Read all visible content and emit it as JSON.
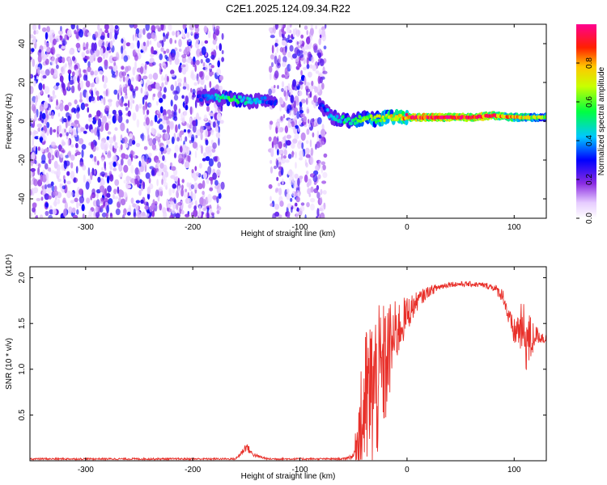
{
  "title": "C2E1.2025.124.09.34.R22",
  "chart_data": [
    {
      "type": "heatmap",
      "xlabel": "Height of straight line (km)",
      "ylabel": "Frequency (Hz)",
      "xlim": [
        -352,
        130
      ],
      "ylim": [
        -50,
        50
      ],
      "xticks": [
        -300,
        -200,
        -100,
        0,
        100
      ],
      "yticks": [
        -40,
        -20,
        0,
        20,
        40
      ],
      "colorbar": {
        "label": "Normalized spectral amplitude",
        "range": [
          0,
          1
        ],
        "ticks": [
          "0.0",
          "0.2",
          "0.4",
          "0.6",
          "0.8"
        ],
        "colors": [
          "#ffffff",
          "#8a2be2",
          "#0000ff",
          "#00ffff",
          "#00ff00",
          "#ffff00",
          "#ff0000",
          "#ff00aa"
        ]
      },
      "ridge": {
        "x": [
          -195,
          -185,
          -175,
          -165,
          -155,
          -145,
          -135,
          -125,
          -80,
          -70,
          -60,
          -50,
          -40,
          -30,
          -20,
          -10,
          0,
          20,
          40,
          60,
          80,
          100,
          120,
          130
        ],
        "freq": [
          12,
          13,
          12,
          12,
          11,
          10,
          11,
          10,
          8,
          2,
          1,
          0,
          2,
          1,
          2,
          2,
          2,
          2,
          2,
          2,
          3,
          2,
          2,
          2
        ],
        "amplitude": [
          0.3,
          0.35,
          0.5,
          0.55,
          0.5,
          0.45,
          0.4,
          0.3,
          0.3,
          0.45,
          0.5,
          0.55,
          0.6,
          0.65,
          0.7,
          0.8,
          0.9,
          1.0,
          1.0,
          1.0,
          0.9,
          0.8,
          0.7,
          0.6
        ]
      },
      "noise_regions": [
        {
          "x_from": -352,
          "x_to": -172,
          "level": 0.25
        },
        {
          "x_from": -128,
          "x_to": -76,
          "level": 0.25
        }
      ]
    },
    {
      "type": "line",
      "xlabel": "Height of straight line (km)",
      "ylabel": "SNR (10 * v/v)",
      "multiplier": "(x10⁴)",
      "xlim": [
        -352,
        130
      ],
      "ylim": [
        0,
        2.12
      ],
      "xticks": [
        -300,
        -200,
        -100,
        0,
        100
      ],
      "yticks": [
        "0.5",
        "1.0",
        "1.5",
        "2.0"
      ],
      "color": "#e8302a",
      "envelope": {
        "x": [
          -352,
          -160,
          -155,
          -150,
          -145,
          -140,
          -130,
          -60,
          -50,
          -45,
          -40,
          -35,
          -30,
          -25,
          -20,
          -15,
          -10,
          0,
          10,
          20,
          30,
          40,
          50,
          60,
          70,
          80,
          90,
          95,
          100,
          105,
          110,
          115,
          120,
          130
        ],
        "base": [
          0.02,
          0.02,
          0.08,
          0.16,
          0.08,
          0.05,
          0.02,
          0.02,
          0.05,
          0.3,
          0.6,
          0.7,
          0.8,
          0.9,
          1.05,
          1.25,
          1.4,
          1.6,
          1.75,
          1.85,
          1.9,
          1.93,
          1.93,
          1.93,
          1.92,
          1.9,
          1.8,
          1.55,
          1.4,
          1.45,
          1.35,
          1.3,
          1.38,
          1.33
        ],
        "spread": [
          0.01,
          0.01,
          0.03,
          0.05,
          0.03,
          0.02,
          0.01,
          0.01,
          0.03,
          0.4,
          0.8,
          0.9,
          0.9,
          0.8,
          0.7,
          0.5,
          0.35,
          0.2,
          0.1,
          0.06,
          0.04,
          0.03,
          0.03,
          0.03,
          0.03,
          0.04,
          0.08,
          0.12,
          0.15,
          0.25,
          0.4,
          0.3,
          0.1,
          0.06
        ]
      }
    }
  ]
}
